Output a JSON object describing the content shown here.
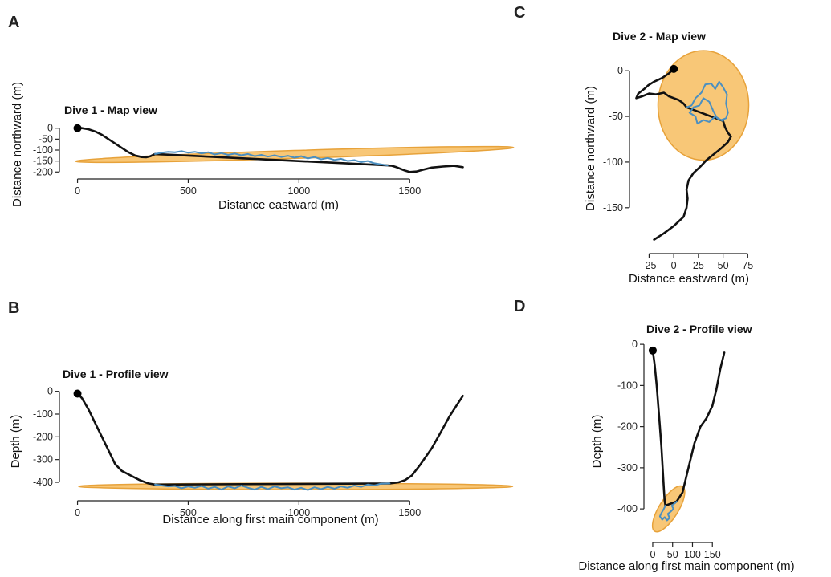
{
  "chart_data": [
    {
      "panel": "A",
      "type": "line",
      "title": "Dive 1 - Map view",
      "xlabel": "Distance eastward (m)",
      "ylabel": "Distance northward (m)",
      "xlim": [
        -60,
        1800
      ],
      "ylim": [
        -210,
        10
      ],
      "xticks": [
        0,
        500,
        1000,
        1500
      ],
      "yticks": [
        0,
        -50,
        -100,
        -150,
        -200
      ],
      "start_point": [
        0,
        0
      ],
      "ellipse": {
        "cx": 980,
        "cy": -120,
        "rx": 990,
        "ry": 18,
        "angle_deg": -1.8,
        "fill": "#f7bd5f",
        "stroke": "#e7a23a"
      },
      "series": [
        {
          "color": "#111111",
          "points": [
            [
              0,
              0
            ],
            [
              20,
              0
            ],
            [
              50,
              -5
            ],
            [
              80,
              -15
            ],
            [
              110,
              -30
            ],
            [
              140,
              -50
            ],
            [
              170,
              -70
            ],
            [
              200,
              -90
            ],
            [
              230,
              -110
            ],
            [
              260,
              -125
            ],
            [
              290,
              -132
            ],
            [
              310,
              -133
            ],
            [
              330,
              -128
            ],
            [
              350,
              -118
            ],
            [
              1400,
              -170
            ],
            [
              1420,
              -172
            ],
            [
              1440,
              -178
            ],
            [
              1460,
              -186
            ],
            [
              1480,
              -194
            ],
            [
              1500,
              -200
            ],
            [
              1530,
              -198
            ],
            [
              1560,
              -190
            ],
            [
              1600,
              -180
            ],
            [
              1650,
              -175
            ],
            [
              1700,
              -172
            ],
            [
              1740,
              -178
            ]
          ]
        },
        {
          "color": "#4a8fc1",
          "points": [
            [
              350,
              -118
            ],
            [
              380,
              -112
            ],
            [
              410,
              -108
            ],
            [
              440,
              -110
            ],
            [
              470,
              -105
            ],
            [
              500,
              -112
            ],
            [
              530,
              -108
            ],
            [
              560,
              -115
            ],
            [
              590,
              -110
            ],
            [
              620,
              -120
            ],
            [
              650,
              -114
            ],
            [
              680,
              -122
            ],
            [
              710,
              -116
            ],
            [
              740,
              -124
            ],
            [
              770,
              -118
            ],
            [
              800,
              -128
            ],
            [
              830,
              -122
            ],
            [
              860,
              -130
            ],
            [
              890,
              -124
            ],
            [
              920,
              -132
            ],
            [
              950,
              -126
            ],
            [
              980,
              -135
            ],
            [
              1010,
              -128
            ],
            [
              1040,
              -138
            ],
            [
              1070,
              -132
            ],
            [
              1100,
              -142
            ],
            [
              1130,
              -136
            ],
            [
              1160,
              -145
            ],
            [
              1190,
              -140
            ],
            [
              1220,
              -150
            ],
            [
              1250,
              -146
            ],
            [
              1280,
              -155
            ],
            [
              1310,
              -150
            ],
            [
              1340,
              -160
            ],
            [
              1370,
              -165
            ],
            [
              1400,
              -170
            ]
          ]
        }
      ]
    },
    {
      "panel": "B",
      "type": "line",
      "title": "Dive 1 - Profile view",
      "xlabel": "Distance along first main component (m)",
      "ylabel": "Depth (m)",
      "xlim": [
        -60,
        1800
      ],
      "ylim": [
        -460,
        20
      ],
      "xticks": [
        0,
        500,
        1000,
        1500
      ],
      "yticks": [
        0,
        -100,
        -200,
        -300,
        -400
      ],
      "start_point": [
        0,
        -10
      ],
      "ellipse": {
        "cx": 985,
        "cy": -418,
        "rx": 980,
        "ry": 14,
        "angle_deg": 0,
        "fill": "#f7bd5f",
        "stroke": "#e7a23a"
      },
      "series": [
        {
          "color": "#111111",
          "points": [
            [
              0,
              -10
            ],
            [
              20,
              -30
            ],
            [
              50,
              -80
            ],
            [
              80,
              -140
            ],
            [
              110,
              -200
            ],
            [
              140,
              -260
            ],
            [
              170,
              -320
            ],
            [
              200,
              -350
            ],
            [
              240,
              -370
            ],
            [
              280,
              -390
            ],
            [
              320,
              -405
            ],
            [
              350,
              -410
            ],
            [
              1410,
              -405
            ],
            [
              1450,
              -400
            ],
            [
              1480,
              -390
            ],
            [
              1510,
              -370
            ],
            [
              1550,
              -320
            ],
            [
              1600,
              -250
            ],
            [
              1640,
              -180
            ],
            [
              1680,
              -110
            ],
            [
              1720,
              -50
            ],
            [
              1740,
              -20
            ]
          ]
        },
        {
          "color": "#4a8fc1",
          "points": [
            [
              350,
              -410
            ],
            [
              380,
              -414
            ],
            [
              410,
              -418
            ],
            [
              440,
              -416
            ],
            [
              470,
              -426
            ],
            [
              500,
              -418
            ],
            [
              530,
              -424
            ],
            [
              560,
              -416
            ],
            [
              590,
              -428
            ],
            [
              620,
              -420
            ],
            [
              650,
              -432
            ],
            [
              680,
              -418
            ],
            [
              710,
              -426
            ],
            [
              740,
              -414
            ],
            [
              770,
              -424
            ],
            [
              800,
              -432
            ],
            [
              830,
              -420
            ],
            [
              860,
              -430
            ],
            [
              890,
              -418
            ],
            [
              920,
              -426
            ],
            [
              950,
              -422
            ],
            [
              980,
              -432
            ],
            [
              1010,
              -424
            ],
            [
              1040,
              -434
            ],
            [
              1070,
              -422
            ],
            [
              1100,
              -430
            ],
            [
              1130,
              -420
            ],
            [
              1160,
              -428
            ],
            [
              1190,
              -418
            ],
            [
              1220,
              -424
            ],
            [
              1250,
              -414
            ],
            [
              1280,
              -420
            ],
            [
              1310,
              -410
            ],
            [
              1340,
              -414
            ],
            [
              1370,
              -406
            ],
            [
              1410,
              -405
            ]
          ]
        }
      ]
    },
    {
      "panel": "C",
      "type": "line",
      "title": "Dive 2 - Map view",
      "xlabel": "Distance eastward (m)",
      "ylabel": "Distance northward (m)",
      "xlim": [
        -40,
        78
      ],
      "ylim": [
        -195,
        23
      ],
      "xticks": [
        -25,
        0,
        25,
        50,
        75
      ],
      "yticks": [
        0,
        -50,
        -100,
        -150
      ],
      "start_point": [
        0,
        2
      ],
      "ellipse": {
        "cx": 30,
        "cy": -38,
        "rx": 46,
        "ry": 60,
        "angle_deg": 0,
        "fill": "#f7bd5f",
        "stroke": "#e7a23a"
      },
      "series": [
        {
          "color": "#111111",
          "points": [
            [
              0,
              2
            ],
            [
              -5,
              -3
            ],
            [
              -12,
              -8
            ],
            [
              -20,
              -12
            ],
            [
              -26,
              -16
            ],
            [
              -30,
              -20
            ],
            [
              -36,
              -25
            ],
            [
              -38,
              -30
            ],
            [
              -32,
              -28
            ],
            [
              -25,
              -25
            ],
            [
              -18,
              -26
            ],
            [
              -10,
              -24
            ],
            [
              -5,
              -28
            ],
            [
              0,
              -30
            ],
            [
              5,
              -32
            ],
            [
              10,
              -36
            ],
            [
              13,
              -40
            ],
            [
              50,
              -55
            ],
            [
              52,
              -62
            ],
            [
              55,
              -68
            ],
            [
              58,
              -72
            ],
            [
              55,
              -78
            ],
            [
              48,
              -85
            ],
            [
              40,
              -92
            ],
            [
              33,
              -98
            ],
            [
              27,
              -105
            ],
            [
              20,
              -112
            ],
            [
              15,
              -120
            ],
            [
              13,
              -130
            ],
            [
              14,
              -140
            ],
            [
              13,
              -150
            ],
            [
              10,
              -160
            ],
            [
              0,
              -170
            ],
            [
              -10,
              -178
            ],
            [
              -20,
              -185
            ]
          ]
        },
        {
          "color": "#4a8fc1",
          "points": [
            [
              13,
              -40
            ],
            [
              18,
              -38
            ],
            [
              22,
              -30
            ],
            [
              28,
              -24
            ],
            [
              32,
              -15
            ],
            [
              38,
              -14
            ],
            [
              42,
              -20
            ],
            [
              46,
              -12
            ],
            [
              50,
              -18
            ],
            [
              54,
              -26
            ],
            [
              53,
              -36
            ],
            [
              55,
              -46
            ],
            [
              53,
              -52
            ],
            [
              48,
              -54
            ],
            [
              42,
              -50
            ],
            [
              36,
              -56
            ],
            [
              30,
              -54
            ],
            [
              24,
              -58
            ],
            [
              22,
              -50
            ],
            [
              16,
              -46
            ],
            [
              20,
              -40
            ],
            [
              26,
              -38
            ],
            [
              30,
              -30
            ],
            [
              36,
              -34
            ],
            [
              40,
              -44
            ],
            [
              44,
              -52
            ],
            [
              50,
              -55
            ]
          ]
        }
      ]
    },
    {
      "panel": "D",
      "type": "line",
      "title": "Dive 2 - Profile view",
      "xlabel": "Distance along first main component (m)",
      "ylabel": "Depth (m)",
      "xlim": [
        -10,
        200
      ],
      "ylim": [
        -470,
        10
      ],
      "xticks": [
        0,
        50,
        100,
        150
      ],
      "yticks": [
        0,
        -100,
        -200,
        -300,
        -400
      ],
      "start_point": [
        0,
        -15
      ],
      "ellipse": {
        "cx": 40,
        "cy": -400,
        "rx": 24,
        "ry": 64,
        "angle_deg": 32,
        "fill": "#f7bd5f",
        "stroke": "#e7a23a"
      },
      "series": [
        {
          "color": "#111111",
          "points": [
            [
              0,
              -15
            ],
            [
              5,
              -50
            ],
            [
              10,
              -100
            ],
            [
              14,
              -150
            ],
            [
              18,
              -200
            ],
            [
              22,
              -250
            ],
            [
              25,
              -300
            ],
            [
              28,
              -350
            ],
            [
              30,
              -380
            ],
            [
              32,
              -392
            ],
            [
              60,
              -382
            ],
            [
              75,
              -360
            ],
            [
              85,
              -320
            ],
            [
              95,
              -280
            ],
            [
              105,
              -240
            ],
            [
              120,
              -200
            ],
            [
              135,
              -180
            ],
            [
              150,
              -150
            ],
            [
              160,
              -110
            ],
            [
              170,
              -60
            ],
            [
              180,
              -20
            ]
          ]
        },
        {
          "color": "#4a8fc1",
          "points": [
            [
              32,
              -392
            ],
            [
              28,
              -400
            ],
            [
              22,
              -410
            ],
            [
              18,
              -418
            ],
            [
              24,
              -426
            ],
            [
              30,
              -420
            ],
            [
              36,
              -428
            ],
            [
              42,
              -422
            ],
            [
              38,
              -412
            ],
            [
              46,
              -406
            ],
            [
              52,
              -400
            ],
            [
              48,
              -392
            ],
            [
              56,
              -386
            ],
            [
              60,
              -382
            ]
          ]
        }
      ]
    }
  ]
}
